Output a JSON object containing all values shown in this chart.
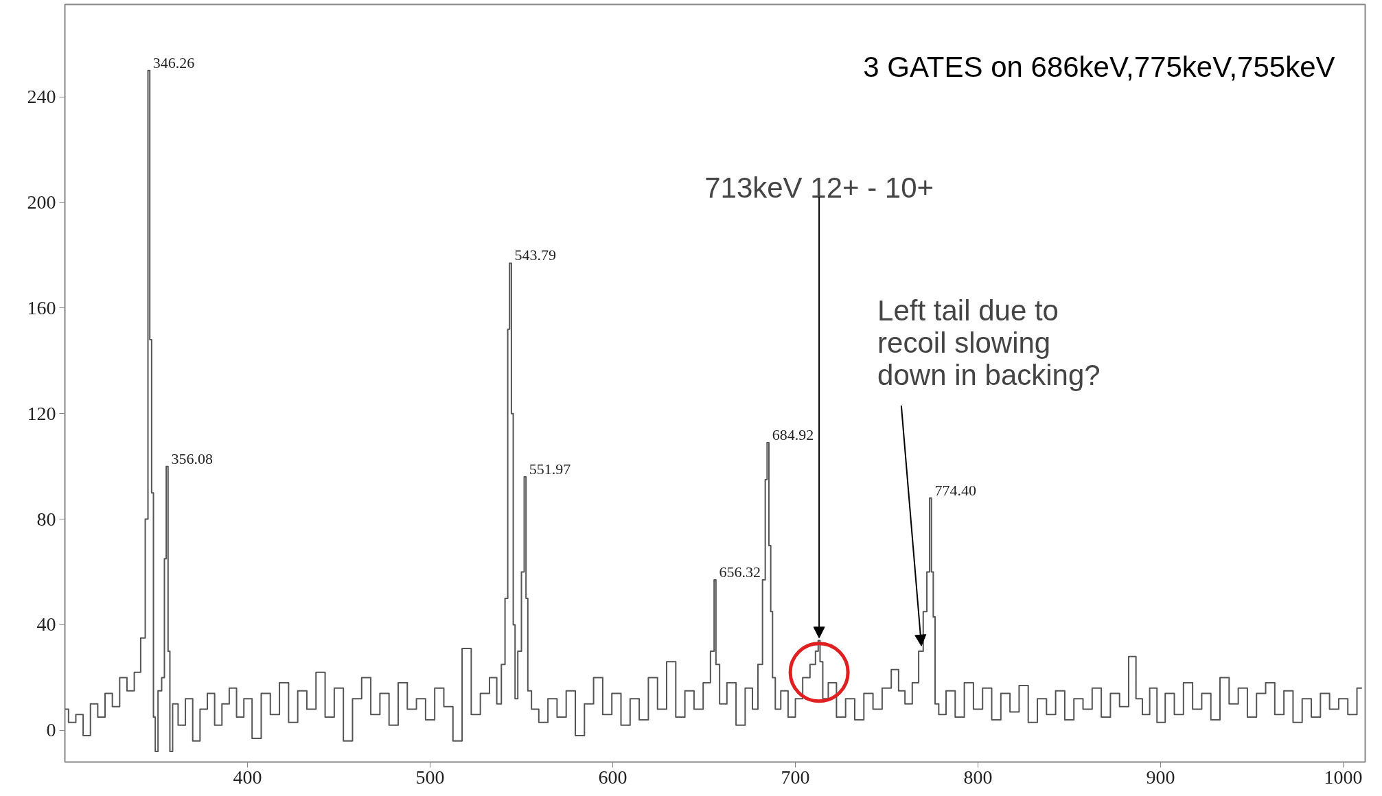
{
  "chart_data": {
    "type": "step",
    "title": "3 GATES on 686keV,775keV,755keV",
    "x": [
      300,
      304,
      308,
      312,
      316,
      320,
      324,
      328,
      332,
      336,
      340,
      343,
      345,
      346,
      347,
      348,
      349,
      350,
      352,
      354,
      355,
      356,
      357,
      358,
      360,
      364,
      368,
      372,
      376,
      380,
      384,
      388,
      392,
      396,
      400,
      405,
      410,
      415,
      420,
      425,
      430,
      435,
      440,
      445,
      450,
      455,
      460,
      465,
      470,
      475,
      480,
      485,
      490,
      495,
      500,
      505,
      510,
      515,
      520,
      525,
      530,
      535,
      538,
      540,
      542,
      543,
      544,
      545,
      546,
      547,
      549,
      551,
      552,
      553,
      554,
      557,
      562,
      567,
      572,
      577,
      582,
      587,
      592,
      597,
      602,
      607,
      612,
      617,
      622,
      627,
      632,
      637,
      642,
      647,
      652,
      655,
      656,
      657,
      660,
      665,
      670,
      675,
      678,
      681,
      683,
      684,
      685,
      686,
      687,
      688,
      690,
      694,
      698,
      702,
      706,
      710,
      712,
      713,
      714,
      716,
      720,
      725,
      730,
      735,
      740,
      745,
      750,
      755,
      758,
      762,
      766,
      769,
      771,
      773,
      774,
      775,
      776,
      777,
      780,
      785,
      790,
      795,
      800,
      805,
      810,
      815,
      820,
      825,
      830,
      835,
      840,
      845,
      850,
      855,
      860,
      865,
      870,
      875,
      880,
      885,
      888,
      892,
      896,
      900,
      905,
      910,
      915,
      920,
      925,
      930,
      935,
      940,
      945,
      950,
      955,
      960,
      965,
      970,
      975,
      980,
      985,
      990,
      995,
      1000,
      1005,
      1010
    ],
    "values": [
      8,
      3,
      6,
      -2,
      10,
      5,
      14,
      9,
      20,
      15,
      22,
      35,
      80,
      250,
      148,
      90,
      5,
      -8,
      15,
      20,
      65,
      100,
      30,
      -8,
      10,
      2,
      12,
      -4,
      8,
      14,
      2,
      10,
      16,
      5,
      12,
      -3,
      14,
      6,
      18,
      3,
      15,
      8,
      22,
      5,
      16,
      -4,
      12,
      20,
      6,
      14,
      2,
      18,
      8,
      12,
      4,
      16,
      9,
      -4,
      31,
      6,
      14,
      20,
      10,
      25,
      50,
      152,
      177,
      120,
      40,
      12,
      30,
      60,
      96,
      50,
      15,
      8,
      3,
      12,
      5,
      15,
      -2,
      10,
      20,
      6,
      14,
      2,
      12,
      4,
      20,
      8,
      26,
      5,
      15,
      8,
      18,
      30,
      57,
      25,
      10,
      18,
      2,
      16,
      8,
      25,
      57,
      95,
      109,
      70,
      45,
      20,
      8,
      15,
      5,
      12,
      20,
      25,
      30,
      34,
      26,
      12,
      18,
      5,
      12,
      4,
      14,
      8,
      16,
      23,
      15,
      10,
      18,
      30,
      45,
      60,
      88,
      60,
      43,
      10,
      6,
      15,
      5,
      18,
      8,
      16,
      4,
      14,
      7,
      17,
      3,
      12,
      6,
      15,
      4,
      12,
      8,
      16,
      5,
      14,
      9,
      28,
      12,
      6,
      16,
      3,
      14,
      6,
      18,
      8,
      14,
      4,
      20,
      10,
      16,
      5,
      14,
      18,
      6,
      15,
      3,
      12,
      5,
      14,
      8,
      12,
      6,
      16
    ],
    "color": "#555555",
    "xlim": [
      300,
      1012
    ],
    "ylim": [
      -12,
      275
    ],
    "xticks": [
      400,
      500,
      600,
      700,
      800,
      900,
      1000
    ],
    "yticks": [
      0,
      40,
      80,
      120,
      160,
      200,
      240
    ],
    "grid": false,
    "annotations": [
      {
        "text": "346.26",
        "x": 346,
        "y": 250
      },
      {
        "text": "356.08",
        "x": 356,
        "y": 100
      },
      {
        "text": "543.79",
        "x": 544,
        "y": 177
      },
      {
        "text": "551.97",
        "x": 552,
        "y": 96
      },
      {
        "text": "656.32",
        "x": 656,
        "y": 57
      },
      {
        "text": "684.92",
        "x": 685,
        "y": 109
      },
      {
        "text": "774.40",
        "x": 774,
        "y": 88
      },
      {
        "text": "713keV 12+ - 10+",
        "x": 713,
        "y": 34
      },
      {
        "text": "Left tail due to\nrecoil slowing\ndown in backing?",
        "x": 769,
        "y": 30
      }
    ]
  }
}
